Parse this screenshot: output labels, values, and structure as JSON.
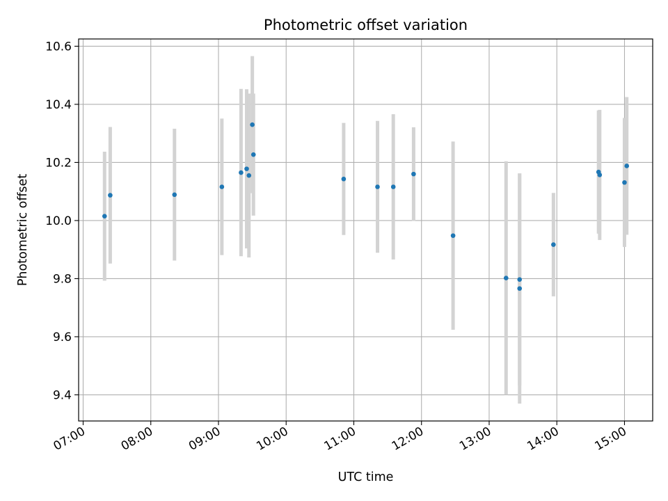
{
  "chart_data": {
    "type": "scatter",
    "title": "Photometric offset variation",
    "xlabel": "UTC time",
    "ylabel": "Photometric offset",
    "x_unit": "hour",
    "xlim": [
      "06:56",
      "15:25"
    ],
    "ylim": [
      9.31,
      10.625
    ],
    "xticks": [
      "07:00",
      "08:00",
      "09:00",
      "10:00",
      "11:00",
      "12:00",
      "13:00",
      "14:00",
      "15:00"
    ],
    "yticks": [
      "9.4",
      "9.6",
      "9.8",
      "10.0",
      "10.2",
      "10.4",
      "10.6"
    ],
    "grid": true,
    "marker_color": "#1f77b4",
    "errorbar_color": "#d3d3d3",
    "points": [
      {
        "x": "07:19",
        "y": 10.015,
        "err": 0.222
      },
      {
        "x": "07:24",
        "y": 10.087,
        "err": 0.235
      },
      {
        "x": "08:21",
        "y": 10.089,
        "err": 0.227
      },
      {
        "x": "09:03",
        "y": 10.116,
        "err": 0.235
      },
      {
        "x": "09:20",
        "y": 10.165,
        "err": 0.288
      },
      {
        "x": "09:25",
        "y": 10.178,
        "err": 0.274
      },
      {
        "x": "09:27",
        "y": 10.155,
        "err": 0.282
      },
      {
        "x": "09:30",
        "y": 10.33,
        "err": 0.236
      },
      {
        "x": "09:31",
        "y": 10.227,
        "err": 0.21
      },
      {
        "x": "10:51",
        "y": 10.143,
        "err": 0.193
      },
      {
        "x": "11:21",
        "y": 10.116,
        "err": 0.227
      },
      {
        "x": "11:35",
        "y": 10.116,
        "err": 0.25
      },
      {
        "x": "11:53",
        "y": 10.16,
        "err": 0.161
      },
      {
        "x": "12:28",
        "y": 9.948,
        "err": 0.324
      },
      {
        "x": "13:15",
        "y": 9.802,
        "err": 0.402
      },
      {
        "x": "13:27",
        "y": 9.797,
        "err": 0.365
      },
      {
        "x": "13:27",
        "y": 9.766,
        "err": 0.396
      },
      {
        "x": "13:57",
        "y": 9.917,
        "err": 0.178
      },
      {
        "x": "14:37",
        "y": 10.167,
        "err": 0.212
      },
      {
        "x": "14:38",
        "y": 10.157,
        "err": 0.224
      },
      {
        "x": "15:00",
        "y": 10.131,
        "err": 0.222
      },
      {
        "x": "15:02",
        "y": 10.188,
        "err": 0.237
      }
    ]
  }
}
